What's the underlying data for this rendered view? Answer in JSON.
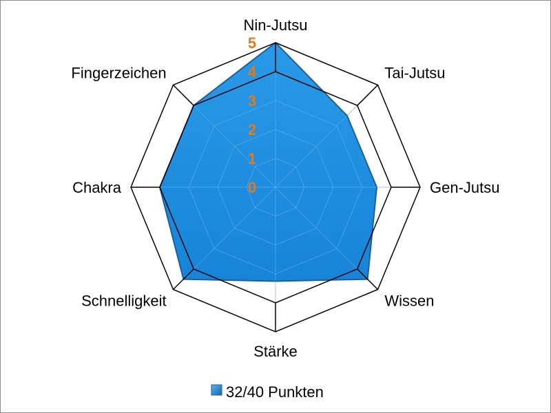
{
  "chart_data": {
    "type": "radar",
    "categories": [
      "Nin-Jutsu",
      "Tai-Jutsu",
      "Gen-Jutsu",
      "Wissen",
      "Stärke",
      "Schnelligkeit",
      "Chakra",
      "Fingerzeichen"
    ],
    "series": [
      {
        "name": "32/40 Punkten",
        "values": [
          5,
          3.5,
          3.5,
          4.5,
          3.25,
          4.5,
          4,
          4
        ]
      }
    ],
    "rlim": [
      0,
      5
    ],
    "ticks": [
      "0",
      "1",
      "2",
      "3",
      "4",
      "5"
    ],
    "legend": "bottom",
    "grid": true
  },
  "colors": {
    "series_fill": "#1f8fe0",
    "series_stroke": "#1a5f9e",
    "tick_label": "#e07b1a",
    "grid_outer": "#000000",
    "grid_inner": "#bfbfbf"
  }
}
